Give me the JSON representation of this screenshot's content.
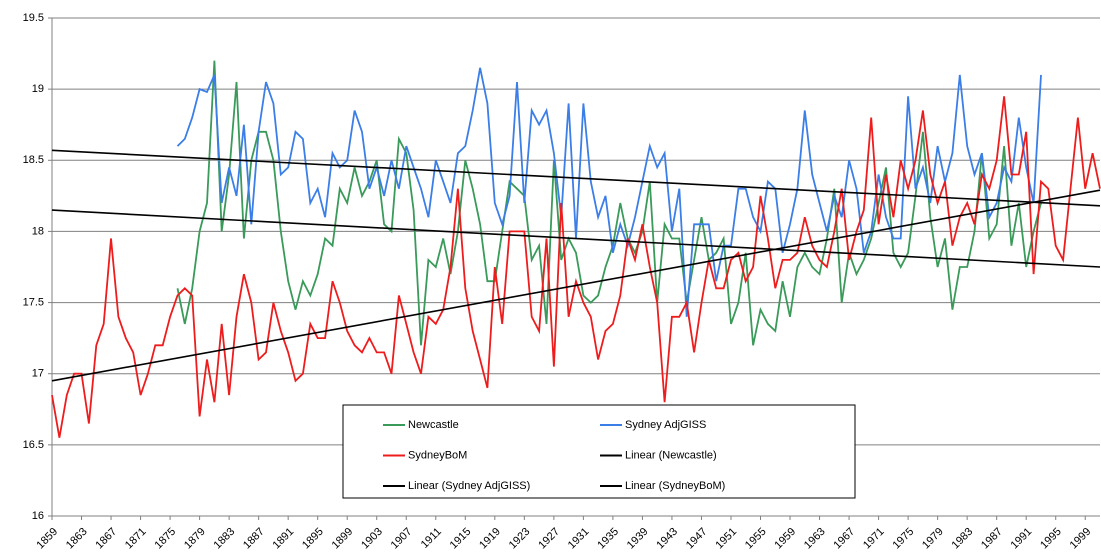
{
  "chart_data": {
    "type": "line",
    "x": [
      1859,
      1860,
      1861,
      1862,
      1863,
      1864,
      1865,
      1866,
      1867,
      1868,
      1869,
      1870,
      1871,
      1872,
      1873,
      1874,
      1875,
      1876,
      1877,
      1878,
      1879,
      1880,
      1881,
      1882,
      1883,
      1884,
      1885,
      1886,
      1887,
      1888,
      1889,
      1890,
      1891,
      1892,
      1893,
      1894,
      1895,
      1896,
      1897,
      1898,
      1899,
      1900,
      1901,
      1902,
      1903,
      1904,
      1905,
      1906,
      1907,
      1908,
      1909,
      1910,
      1911,
      1912,
      1913,
      1914,
      1915,
      1916,
      1917,
      1918,
      1919,
      1920,
      1921,
      1922,
      1923,
      1924,
      1925,
      1926,
      1927,
      1928,
      1929,
      1930,
      1931,
      1932,
      1933,
      1934,
      1935,
      1936,
      1937,
      1938,
      1939,
      1940,
      1941,
      1942,
      1943,
      1944,
      1945,
      1946,
      1947,
      1948,
      1949,
      1950,
      1951,
      1952,
      1953,
      1954,
      1955,
      1956,
      1957,
      1958,
      1959,
      1960,
      1961,
      1962,
      1963,
      1964,
      1965,
      1966,
      1967,
      1968,
      1969,
      1970,
      1971,
      1972,
      1973,
      1974,
      1975,
      1976,
      1977,
      1978,
      1979,
      1980,
      1981,
      1982,
      1983,
      1984,
      1985,
      1986,
      1987,
      1988,
      1989,
      1990,
      1991,
      1992,
      1993,
      1994,
      1995,
      1996,
      1997,
      1998,
      1999,
      2000,
      2001
    ],
    "series": [
      {
        "name": "Newcastle",
        "color": "#3a9a5a",
        "values": [
          null,
          null,
          null,
          null,
          null,
          null,
          null,
          null,
          null,
          null,
          null,
          null,
          null,
          null,
          null,
          null,
          null,
          17.6,
          17.35,
          17.6,
          18.0,
          18.2,
          19.2,
          18.0,
          18.4,
          19.05,
          17.95,
          18.5,
          18.7,
          18.7,
          18.5,
          18.0,
          17.65,
          17.45,
          17.65,
          17.55,
          17.7,
          17.95,
          17.9,
          18.3,
          18.2,
          18.45,
          18.25,
          18.35,
          18.5,
          18.05,
          18.0,
          18.65,
          18.55,
          18.15,
          17.2,
          17.8,
          17.75,
          17.95,
          17.7,
          18.0,
          18.5,
          18.3,
          18.05,
          17.65,
          17.65,
          18.0,
          18.35,
          18.3,
          18.25,
          17.8,
          17.9,
          17.35,
          18.5,
          17.8,
          17.95,
          17.85,
          17.55,
          17.5,
          17.55,
          17.75,
          17.9,
          18.2,
          17.95,
          17.85,
          18.0,
          18.35,
          17.5,
          18.05,
          17.95,
          17.95,
          17.5,
          17.8,
          18.1,
          17.8,
          17.85,
          17.95,
          17.35,
          17.5,
          17.85,
          17.2,
          17.45,
          17.35,
          17.3,
          17.65,
          17.4,
          17.75,
          17.85,
          17.75,
          17.7,
          17.95,
          18.3,
          17.5,
          17.85,
          17.7,
          17.8,
          17.95,
          18.2,
          18.45,
          17.85,
          17.75,
          17.85,
          18.25,
          18.7,
          18.1,
          17.75,
          17.95,
          17.45,
          17.75,
          17.75,
          18.0,
          18.55,
          17.95,
          18.05,
          18.6,
          17.9,
          18.2,
          17.75,
          18.0,
          18.2,
          null,
          null,
          null,
          null,
          null,
          null,
          null,
          null
        ]
      },
      {
        "name": "Sydney AdjGISS",
        "color": "#3b7ee8",
        "values": [
          null,
          null,
          null,
          null,
          null,
          null,
          null,
          null,
          null,
          null,
          null,
          null,
          null,
          null,
          null,
          null,
          null,
          18.6,
          18.65,
          18.8,
          19.0,
          18.98,
          19.1,
          18.2,
          18.45,
          18.25,
          18.75,
          18.05,
          18.7,
          19.05,
          18.9,
          18.4,
          18.45,
          18.7,
          18.65,
          18.2,
          18.3,
          18.1,
          18.55,
          18.45,
          18.5,
          18.85,
          18.7,
          18.3,
          18.45,
          18.25,
          18.5,
          18.3,
          18.6,
          18.45,
          18.3,
          18.1,
          18.5,
          18.35,
          18.2,
          18.55,
          18.6,
          18.85,
          19.15,
          18.9,
          18.2,
          18.05,
          18.25,
          19.05,
          18.2,
          18.85,
          18.75,
          18.85,
          18.55,
          18.1,
          18.9,
          17.95,
          18.9,
          18.35,
          18.1,
          18.25,
          17.85,
          18.05,
          17.9,
          18.1,
          18.35,
          18.6,
          18.45,
          18.55,
          18.0,
          18.3,
          17.4,
          18.05,
          18.05,
          18.05,
          17.65,
          17.9,
          17.9,
          18.3,
          18.3,
          18.1,
          18.0,
          18.35,
          18.3,
          17.85,
          18.05,
          18.3,
          18.85,
          18.4,
          18.2,
          18.0,
          18.25,
          18.1,
          18.5,
          18.3,
          17.85,
          18.0,
          18.4,
          18.1,
          17.95,
          17.95,
          18.95,
          18.3,
          18.45,
          18.2,
          18.6,
          18.35,
          18.55,
          19.1,
          18.6,
          18.4,
          18.55,
          18.1,
          18.2,
          18.45,
          18.35,
          18.8,
          18.45,
          18.2,
          19.1,
          null,
          null,
          null,
          null,
          null,
          null,
          null,
          null
        ]
      },
      {
        "name": "SydneyBoM",
        "color": "#ee1c1c",
        "values": [
          16.85,
          16.55,
          16.85,
          17.0,
          17.0,
          16.65,
          17.2,
          17.35,
          17.95,
          17.4,
          17.25,
          17.15,
          16.85,
          17.0,
          17.2,
          17.2,
          17.4,
          17.55,
          17.6,
          17.55,
          16.7,
          17.1,
          16.8,
          17.35,
          16.85,
          17.4,
          17.7,
          17.5,
          17.1,
          17.15,
          17.5,
          17.3,
          17.15,
          16.95,
          17.0,
          17.35,
          17.25,
          17.25,
          17.65,
          17.5,
          17.3,
          17.2,
          17.15,
          17.25,
          17.15,
          17.15,
          17.0,
          17.55,
          17.35,
          17.15,
          17.0,
          17.4,
          17.35,
          17.45,
          17.75,
          18.3,
          17.6,
          17.3,
          17.1,
          16.9,
          17.75,
          17.35,
          18.0,
          18.0,
          18.0,
          17.4,
          17.3,
          17.95,
          17.05,
          18.2,
          17.4,
          17.65,
          17.5,
          17.4,
          17.1,
          17.3,
          17.35,
          17.55,
          17.95,
          17.8,
          18.05,
          17.75,
          17.5,
          16.8,
          17.4,
          17.4,
          17.5,
          17.15,
          17.5,
          17.8,
          17.6,
          17.6,
          17.8,
          17.85,
          17.65,
          17.75,
          18.25,
          17.95,
          17.6,
          17.8,
          17.8,
          17.85,
          18.1,
          17.9,
          17.8,
          17.75,
          18.0,
          18.3,
          17.8,
          18.0,
          18.15,
          18.8,
          18.05,
          18.4,
          18.1,
          18.5,
          18.3,
          18.5,
          18.85,
          18.4,
          18.2,
          18.35,
          17.9,
          18.1,
          18.2,
          18.05,
          18.4,
          18.3,
          18.5,
          18.95,
          18.4,
          18.4,
          18.7,
          17.7,
          18.35,
          18.3,
          17.9,
          17.8,
          18.3,
          18.8,
          18.3,
          18.55,
          18.3
        ]
      },
      {
        "name": "Linear (Newcastle)",
        "color": "#000000",
        "x": [
          1859,
          2001
        ],
        "values": [
          18.15,
          17.75
        ]
      },
      {
        "name": "Linear (Sydney AdjGISS)",
        "color": "#000000",
        "x": [
          1859,
          2001
        ],
        "values": [
          18.57,
          18.18
        ]
      },
      {
        "name": "Linear (SydneyBoM)",
        "color": "#000000",
        "x": [
          1859,
          2001
        ],
        "values": [
          16.95,
          18.29
        ]
      }
    ],
    "xlim": [
      1859,
      2001
    ],
    "xticks": [
      1859,
      1863,
      1867,
      1871,
      1875,
      1879,
      1883,
      1887,
      1891,
      1895,
      1899,
      1903,
      1907,
      1911,
      1915,
      1919,
      1923,
      1927,
      1931,
      1935,
      1939,
      1943,
      1947,
      1951,
      1955,
      1959,
      1963,
      1967,
      1971,
      1975,
      1979,
      1983,
      1987,
      1991,
      1995,
      1999
    ],
    "ylim": [
      16,
      19.5
    ],
    "yticks": [
      16,
      16.5,
      17,
      17.5,
      18,
      18.5,
      19,
      19.5
    ],
    "grid": true
  }
}
